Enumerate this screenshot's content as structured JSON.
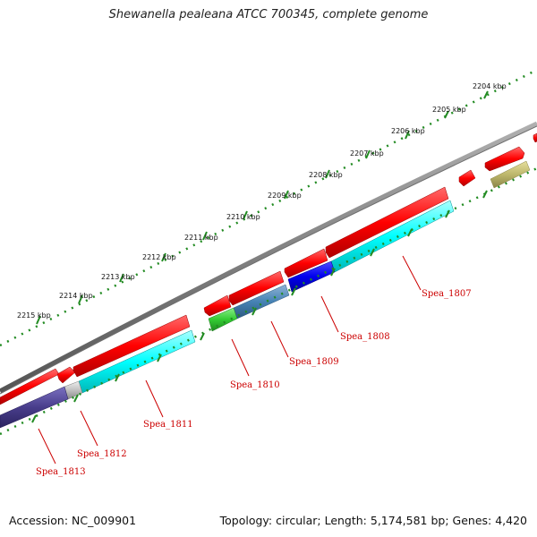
{
  "title": "Shewanella pealeana ATCC 700345, complete genome",
  "footer": {
    "accession": "Accession: NC_009901",
    "topology": "Topology: circular; Length: 5,174,581 bp; Genes: 4,420"
  },
  "scale": {
    "ticks": [
      "2204 kbp",
      "2205 kbp",
      "2206 kbp",
      "2207 kbp",
      "2208 kbp",
      "2209 kbp",
      "2210 kbp",
      "2211 kbp",
      "2212 kbp",
      "2213 kbp",
      "2214 kbp",
      "2215 kbp"
    ]
  },
  "genes": [
    {
      "label": "Spea_1807",
      "color": "#00ffff"
    },
    {
      "label": "Spea_1808",
      "color": "#0000ee"
    },
    {
      "label": "Spea_1809",
      "color": "#4682b4"
    },
    {
      "label": "Spea_1810",
      "color": "#33cc33"
    },
    {
      "label": "Spea_1811",
      "color": "#00ffff"
    },
    {
      "label": "Spea_1812",
      "color": "#c0c0c0"
    },
    {
      "label": "Spea_1813",
      "color": "#483d8b"
    }
  ],
  "colors": {
    "cds": "#ff0000",
    "backbone": "#808080",
    "tick": "#228b22",
    "label": "#cc0000"
  }
}
